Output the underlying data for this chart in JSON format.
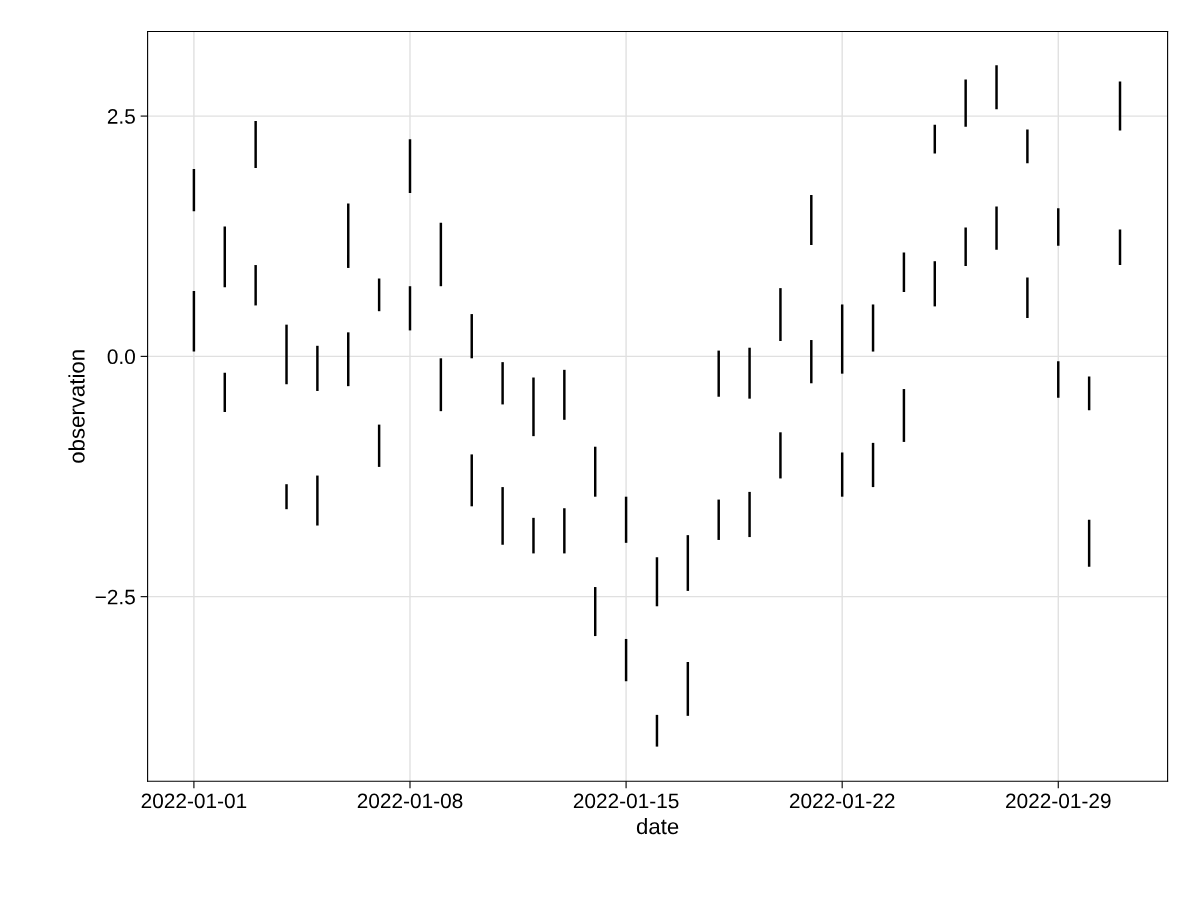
{
  "chart_data": {
    "type": "bar",
    "xlabel": "date",
    "ylabel": "observation",
    "x": [
      "2022-01-01",
      "2022-01-02",
      "2022-01-03",
      "2022-01-04",
      "2022-01-05",
      "2022-01-06",
      "2022-01-07",
      "2022-01-08",
      "2022-01-09",
      "2022-01-10",
      "2022-01-11",
      "2022-01-12",
      "2022-01-13",
      "2022-01-14",
      "2022-01-15",
      "2022-01-16",
      "2022-01-17",
      "2022-01-18",
      "2022-01-19",
      "2022-01-20",
      "2022-01-21",
      "2022-01-22",
      "2022-01-23",
      "2022-01-24",
      "2022-01-25",
      "2022-01-26",
      "2022-01-27",
      "2022-01-28",
      "2022-01-29",
      "2022-01-30",
      "2022-01-31"
    ],
    "series": [
      {
        "color": "#000000",
        "base": [
          1.51,
          0.72,
          1.96,
          -0.29,
          -0.36,
          0.92,
          0.47,
          1.7,
          0.73,
          -0.02,
          -0.5,
          -0.83,
          -0.66,
          -1.46,
          -1.94,
          -2.6,
          -2.44,
          -0.42,
          -0.44,
          0.16,
          1.16,
          -0.18,
          0.05,
          0.67,
          2.11,
          2.39,
          2.57,
          2.01,
          1.15,
          -0.56,
          2.35
        ],
        "values": [
          0.44,
          0.63,
          0.49,
          0.62,
          0.47,
          0.67,
          0.34,
          0.56,
          0.66,
          0.46,
          0.44,
          0.61,
          0.52,
          0.52,
          0.48,
          0.51,
          0.58,
          0.48,
          0.53,
          0.55,
          0.52,
          0.72,
          0.49,
          0.41,
          0.3,
          0.49,
          0.46,
          0.35,
          0.39,
          0.35,
          0.51
        ]
      },
      {
        "color": "#000000",
        "base": [
          0.05,
          -0.58,
          0.53,
          -1.59,
          -1.76,
          -0.31,
          -1.15,
          0.27,
          -0.57,
          -1.56,
          -1.96,
          -2.05,
          -2.05,
          -2.91,
          -3.38,
          -4.06,
          -3.74,
          -1.91,
          -1.88,
          -1.27,
          -0.28,
          -1.46,
          -1.36,
          -0.89,
          0.52,
          0.94,
          1.11,
          0.4,
          -0.43,
          -2.19,
          0.95
        ],
        "values": [
          0.63,
          0.41,
          0.42,
          0.26,
          0.52,
          0.56,
          0.44,
          0.46,
          0.55,
          0.54,
          0.6,
          0.37,
          0.47,
          0.51,
          0.44,
          0.33,
          0.56,
          0.42,
          0.47,
          0.48,
          0.45,
          0.46,
          0.46,
          0.55,
          0.47,
          0.4,
          0.45,
          0.42,
          0.38,
          0.49,
          0.37
        ]
      }
    ],
    "xlim": [
      "2021-12-30T12:00",
      "2022-02-01T13:00"
    ],
    "xticks": [
      "2022-01-01",
      "2022-01-08",
      "2022-01-15",
      "2022-01-22",
      "2022-01-29"
    ],
    "ylim": [
      -4.42,
      3.38
    ],
    "yticks": [
      {
        "value": -2.5,
        "label": "−2.5"
      },
      {
        "value": 0.0,
        "label": "0.0"
      },
      {
        "value": 2.5,
        "label": "2.5"
      }
    ],
    "grid": true
  }
}
